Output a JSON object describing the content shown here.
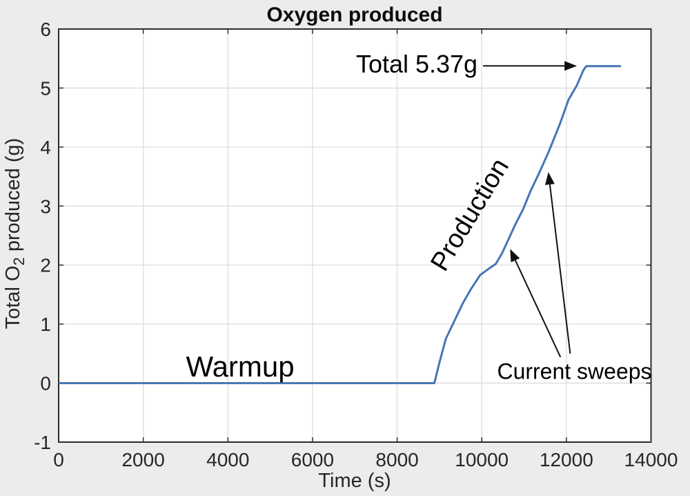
{
  "chart_data": {
    "type": "line",
    "title": "Oxygen produced",
    "xlabel": "Time (s)",
    "ylabel": "Total O2 produced (g)",
    "ylabel_parts": {
      "pre": "Total O",
      "sub": "2",
      "post": " produced (g)"
    },
    "xlim": [
      0,
      14000
    ],
    "ylim": [
      -1,
      6
    ],
    "x_ticks": [
      0,
      2000,
      4000,
      6000,
      8000,
      10000,
      12000,
      14000
    ],
    "y_ticks": [
      -1,
      0,
      1,
      2,
      3,
      4,
      5,
      6
    ],
    "grid": true,
    "legend": "none",
    "total_produced_g": 5.37,
    "colors": {
      "line": "#4575b4",
      "background": "#ececec",
      "plot_background": "#ffffff",
      "grid": "#dcdcdc",
      "axis": "#2b2b2b",
      "tick_text": "#262626",
      "annotation": "#000000"
    },
    "series": [
      {
        "name": "Total O2 produced",
        "points": [
          [
            0,
            0
          ],
          [
            8880,
            0
          ],
          [
            9000,
            0.35
          ],
          [
            9150,
            0.75
          ],
          [
            9350,
            1.05
          ],
          [
            9550,
            1.35
          ],
          [
            9750,
            1.6
          ],
          [
            9960,
            1.83
          ],
          [
            10150,
            1.93
          ],
          [
            10330,
            2.02
          ],
          [
            10480,
            2.2
          ],
          [
            10640,
            2.45
          ],
          [
            10800,
            2.7
          ],
          [
            10980,
            2.95
          ],
          [
            11150,
            3.25
          ],
          [
            11350,
            3.55
          ],
          [
            11600,
            3.95
          ],
          [
            11850,
            4.4
          ],
          [
            12050,
            4.8
          ],
          [
            12250,
            5.05
          ],
          [
            12400,
            5.3
          ],
          [
            12470,
            5.37
          ],
          [
            13290,
            5.37
          ]
        ]
      }
    ],
    "annotations": [
      {
        "name": "total-label",
        "text": "Total 5.37g",
        "t": 9900,
        "g": 5.26,
        "anchor": "end",
        "size": 36,
        "rotate": 0
      },
      {
        "name": "warmup-label",
        "text": "Warmup",
        "t": 4290,
        "g": 0.11,
        "anchor": "middle",
        "size": 42,
        "rotate": 0
      },
      {
        "name": "production-label",
        "text": "Production",
        "t": 9890,
        "g": 2.78,
        "anchor": "middle",
        "size": 38,
        "rotate": -59
      },
      {
        "name": "current-sweeps-label",
        "text": "Current sweeps",
        "t": 12190,
        "g": 0.07,
        "anchor": "middle",
        "size": 32,
        "rotate": 0
      }
    ],
    "arrows": [
      {
        "name": "total-arrow",
        "from": [
          10030,
          5.375
        ],
        "to": [
          12200,
          5.375
        ]
      },
      {
        "name": "current-sweep-arrow-1",
        "from": [
          11860,
          0.44
        ],
        "to": [
          10690,
          2.24
        ]
      },
      {
        "name": "current-sweep-arrow-2",
        "from": [
          12090,
          0.5
        ],
        "to": [
          11580,
          3.54
        ]
      }
    ]
  }
}
